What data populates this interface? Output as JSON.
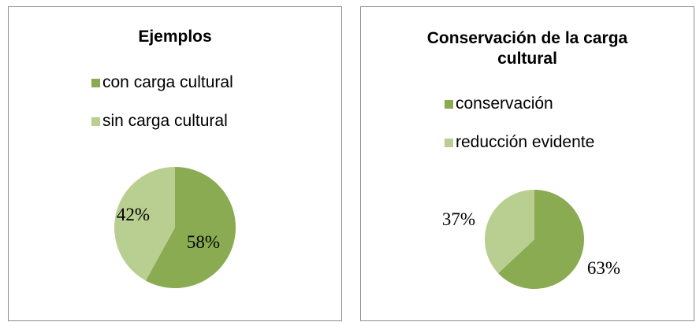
{
  "chart_data": [
    {
      "type": "pie",
      "title": "Ejemplos",
      "categories": [
        "con carga cultural",
        "sin carga cultural"
      ],
      "values": [
        58,
        42
      ],
      "data_labels": [
        "58%",
        "42%"
      ],
      "colors": [
        "#8aab52",
        "#b9cf91"
      ],
      "legend": "top"
    },
    {
      "type": "pie",
      "title": "Conservación de la carga cultural",
      "categories": [
        "conservación",
        "reducción evidente"
      ],
      "values": [
        63,
        37
      ],
      "data_labels": [
        "63%",
        "37%"
      ],
      "colors": [
        "#8aab52",
        "#b9cf91"
      ],
      "legend": "top"
    }
  ]
}
